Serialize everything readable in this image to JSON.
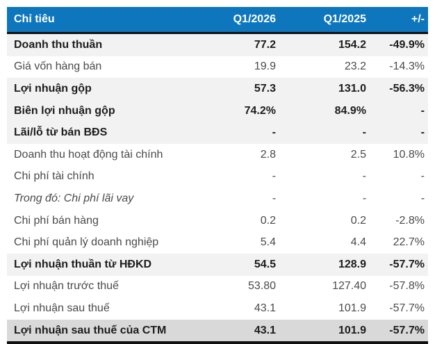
{
  "colors": {
    "header_bg": "#0d76bd",
    "header_text": "#ffffff",
    "highlight_row_bg": "#f2f2f2",
    "total_row_bg": "#d9d9d9",
    "rule_color": "#101010",
    "bold_text": "#1c1c1c",
    "normal_text": "#4a4a4a"
  },
  "chart_data": {
    "type": "table",
    "title": "",
    "columns": [
      "Chỉ tiêu",
      "Q1/2026",
      "Q1/2025",
      "+/-"
    ],
    "rows": [
      {
        "variant": "highlight",
        "cells": [
          "Doanh thu thuần",
          "77.2",
          "154.2",
          "-49.9%"
        ]
      },
      {
        "variant": "normal",
        "cells": [
          "Giá vốn hàng bán",
          "19.9",
          "23.2",
          "-14.3%"
        ]
      },
      {
        "variant": "highlight",
        "cells": [
          "Lợi nhuận gộp",
          "57.3",
          "131.0",
          "-56.3%"
        ]
      },
      {
        "variant": "highlight",
        "cells": [
          "Biên lợi nhuận gộp",
          "74.2%",
          "84.9%",
          "-"
        ]
      },
      {
        "variant": "highlight",
        "cells": [
          "Lãi/lỗ từ bán BĐS",
          "-",
          "-",
          "-"
        ]
      },
      {
        "variant": "normal",
        "cells": [
          "Doanh thu hoạt động tài chính",
          "2.8",
          "2.5",
          "10.8%"
        ]
      },
      {
        "variant": "normal",
        "cells": [
          "Chi phí tài chính",
          "-",
          "-",
          "-"
        ]
      },
      {
        "variant": "note",
        "cells": [
          "Trong đó: Chi phí lãi vay",
          "-",
          "-",
          "-"
        ]
      },
      {
        "variant": "normal",
        "cells": [
          "Chi phí bán hàng",
          "0.2",
          "0.2",
          "-2.8%"
        ]
      },
      {
        "variant": "normal",
        "cells": [
          "Chi phí quản lý doanh nghiệp",
          "5.4",
          "4.4",
          "22.7%"
        ]
      },
      {
        "variant": "highlight",
        "cells": [
          "Lợi nhuận thuần từ HĐKD",
          "54.5",
          "128.9",
          "-57.7%"
        ]
      },
      {
        "variant": "normal",
        "cells": [
          "Lợi nhuận trước thuế",
          "53.80",
          "127.40",
          "-57.8%"
        ]
      },
      {
        "variant": "normal",
        "cells": [
          "Lợi nhuận sau thuế",
          "43.1",
          "101.9",
          "-57.7%"
        ]
      },
      {
        "variant": "total",
        "cells": [
          "Lợi nhuận sau thuế của CTM",
          "43.1",
          "101.9",
          "-57.7%"
        ]
      }
    ]
  }
}
